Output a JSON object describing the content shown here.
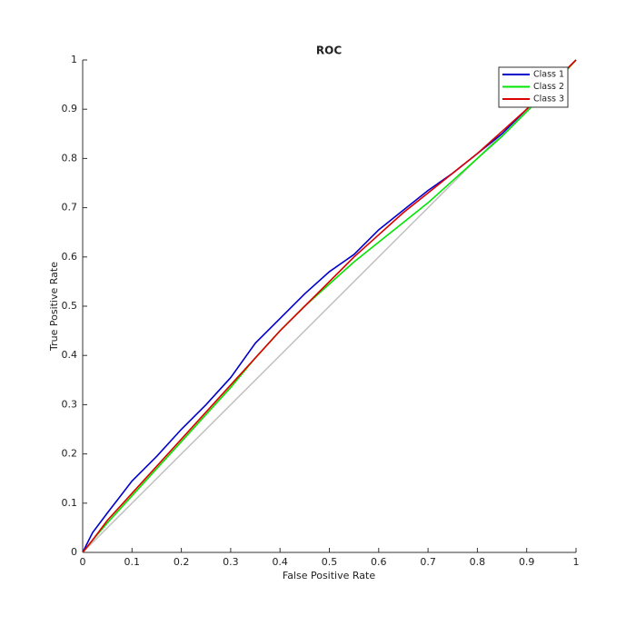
{
  "chart_data": {
    "type": "line",
    "title": "ROC",
    "xlabel": "False Positive Rate",
    "ylabel": "True Positive Rate",
    "x": [
      0,
      0.02,
      0.05,
      0.1,
      0.15,
      0.2,
      0.25,
      0.3,
      0.35,
      0.4,
      0.45,
      0.5,
      0.55,
      0.6,
      0.65,
      0.7,
      0.75,
      0.8,
      0.85,
      0.9,
      0.95,
      1
    ],
    "series": [
      {
        "name": "Class 1",
        "color": "#0000cc",
        "values": [
          0,
          0.04,
          0.08,
          0.145,
          0.195,
          0.25,
          0.3,
          0.355,
          0.425,
          0.475,
          0.525,
          0.57,
          0.605,
          0.655,
          0.695,
          0.735,
          0.77,
          0.81,
          0.85,
          0.9,
          0.95,
          1
        ]
      },
      {
        "name": "Class 2",
        "color": "#00e600",
        "values": [
          0,
          0.025,
          0.06,
          0.115,
          0.17,
          0.225,
          0.28,
          0.335,
          0.395,
          0.45,
          0.5,
          0.545,
          0.59,
          0.63,
          0.67,
          0.71,
          0.755,
          0.8,
          0.845,
          0.895,
          0.945,
          1
        ]
      },
      {
        "name": "Class 3",
        "color": "#dd0000",
        "values": [
          0,
          0.025,
          0.065,
          0.12,
          0.175,
          0.23,
          0.285,
          0.34,
          0.395,
          0.45,
          0.5,
          0.55,
          0.6,
          0.645,
          0.69,
          0.73,
          0.77,
          0.81,
          0.855,
          0.9,
          0.95,
          1
        ]
      }
    ],
    "xlim": [
      0,
      1
    ],
    "ylim": [
      0,
      1
    ],
    "xticks": [
      0,
      0.1,
      0.2,
      0.3,
      0.4,
      0.5,
      0.6,
      0.7,
      0.8,
      0.9,
      1
    ],
    "yticks": [
      0,
      0.1,
      0.2,
      0.3,
      0.4,
      0.5,
      0.6,
      0.7,
      0.8,
      0.9,
      1
    ],
    "diagonal_color": "#c0c0c0",
    "legend": "upper right"
  }
}
